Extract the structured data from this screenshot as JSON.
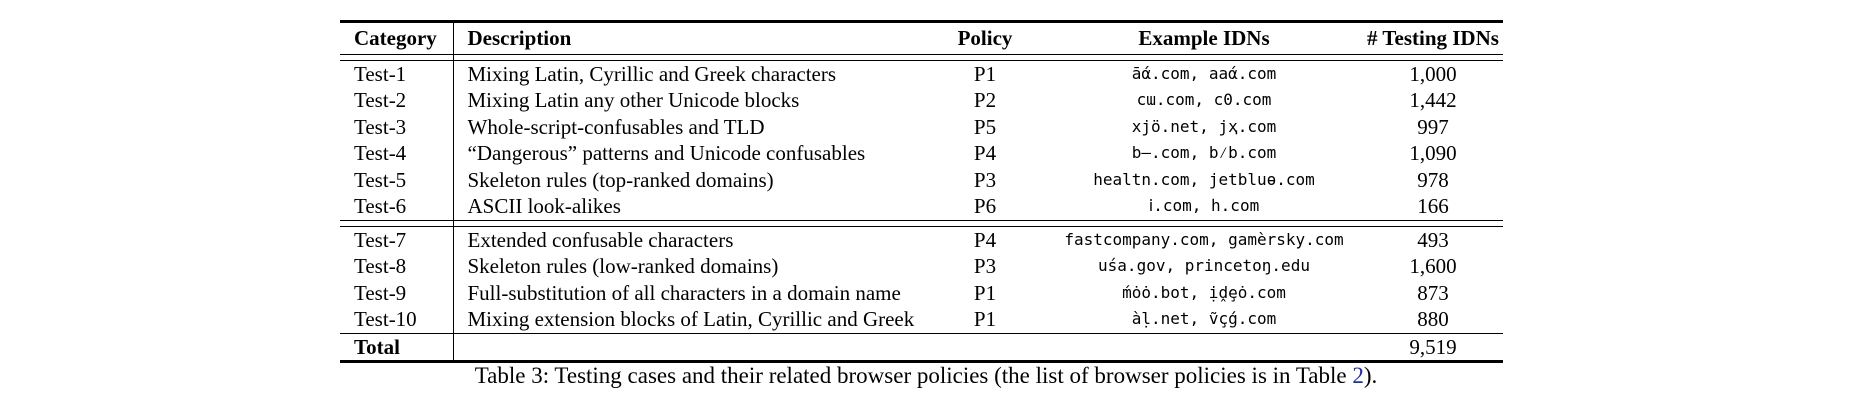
{
  "table": {
    "headers": {
      "category": "Category",
      "description": "Description",
      "policy": "Policy",
      "example": "Example IDNs",
      "count": "# Testing IDNs"
    },
    "group1": [
      {
        "category": "Test-1",
        "description": "Mixing Latin, Cyrillic and Greek characters",
        "policy": "P1",
        "example": "āά.com, aaά.com",
        "count": "1,000"
      },
      {
        "category": "Test-2",
        "description": "Mixing Latin any other Unicode blocks",
        "policy": "P2",
        "example": "cɯ.com, c0.com",
        "count": "1,442"
      },
      {
        "category": "Test-3",
        "description": "Whole-script-confusables and TLD",
        "policy": "P5",
        "example": "xjö.net, jҳ.com",
        "count": "997"
      },
      {
        "category": "Test-4",
        "description": "“Dangerous” patterns and Unicode confusables",
        "policy": "P4",
        "example": "b—.com, b⁄b.com",
        "count": "1,090"
      },
      {
        "category": "Test-5",
        "description": "Skeleton rules (top-ranked domains)",
        "policy": "P3",
        "example": "healtn.com, jetbluɵ.com",
        "count": "978"
      },
      {
        "category": "Test-6",
        "description": "ASCII look-alikes",
        "policy": "P6",
        "example": "ⅰ.com, һ.com",
        "count": "166"
      }
    ],
    "group2": [
      {
        "category": "Test-7",
        "description": "Extended confusable characters",
        "policy": "P4",
        "example": "fastcompany.com, gamèrsky.com",
        "count": "493"
      },
      {
        "category": "Test-8",
        "description": "Skeleton rules (low-ranked domains)",
        "policy": "P3",
        "example": "uśa.gov, princetoŋ.edu",
        "count": "1,600"
      },
      {
        "category": "Test-9",
        "description": "Full-substitution of all characters in a domain name",
        "policy": "P1",
        "example": "ḿȯȯ.bot, ịḓȩȯ.com",
        "count": "873"
      },
      {
        "category": "Test-10",
        "description": "Mixing extension blocks of Latin, Cyrillic and Greek",
        "policy": "P1",
        "example": "àḷ.net, ṽçǵ.com",
        "count": "880"
      }
    ],
    "total": {
      "label": "Total",
      "count": "9,519"
    }
  },
  "caption": {
    "text": "Table 3: Testing cases and their related browser policies (the list of browser policies is in Table ",
    "ref": "2",
    "end": ")."
  }
}
